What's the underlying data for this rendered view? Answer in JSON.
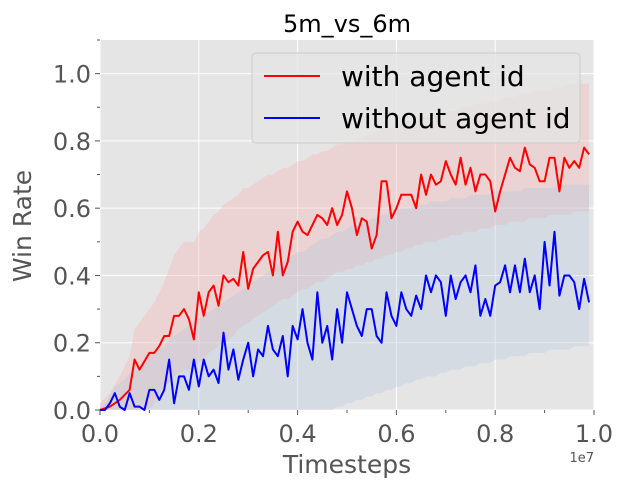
{
  "chart_data": {
    "type": "line",
    "title": "5m_vs_6m",
    "xlabel": "Timesteps",
    "ylabel": "Win Rate",
    "x_offset_label": "1e7",
    "xlim": [
      0,
      1.0
    ],
    "ylim": [
      0,
      1.1
    ],
    "xticks": [
      "0.0",
      "0.2",
      "0.4",
      "0.6",
      "0.8",
      "1.0"
    ],
    "yticks": [
      "0.0",
      "0.2",
      "0.4",
      "0.6",
      "0.8",
      "1.0"
    ],
    "grid": true,
    "legend_position": "upper-right",
    "style": "ggplot",
    "series": [
      {
        "name": "with agent id",
        "color": "#ff0000",
        "band_color": "#f5b3b3",
        "x": [
          0.0,
          0.02,
          0.04,
          0.06,
          0.07,
          0.08,
          0.1,
          0.11,
          0.12,
          0.13,
          0.14,
          0.15,
          0.16,
          0.17,
          0.18,
          0.19,
          0.2,
          0.21,
          0.22,
          0.23,
          0.24,
          0.25,
          0.26,
          0.27,
          0.28,
          0.29,
          0.3,
          0.31,
          0.32,
          0.33,
          0.34,
          0.35,
          0.36,
          0.37,
          0.38,
          0.39,
          0.4,
          0.41,
          0.42,
          0.43,
          0.44,
          0.45,
          0.46,
          0.47,
          0.48,
          0.49,
          0.5,
          0.51,
          0.52,
          0.53,
          0.54,
          0.55,
          0.56,
          0.57,
          0.58,
          0.59,
          0.6,
          0.61,
          0.62,
          0.63,
          0.64,
          0.65,
          0.66,
          0.67,
          0.68,
          0.69,
          0.7,
          0.71,
          0.72,
          0.73,
          0.74,
          0.75,
          0.76,
          0.77,
          0.78,
          0.79,
          0.8,
          0.81,
          0.82,
          0.83,
          0.84,
          0.85,
          0.86,
          0.87,
          0.88,
          0.89,
          0.9,
          0.91,
          0.92,
          0.93,
          0.94,
          0.95,
          0.96,
          0.97,
          0.98,
          0.99
        ],
        "y": [
          0.0,
          0.01,
          0.03,
          0.06,
          0.15,
          0.12,
          0.17,
          0.17,
          0.19,
          0.22,
          0.22,
          0.28,
          0.28,
          0.3,
          0.27,
          0.21,
          0.35,
          0.28,
          0.35,
          0.37,
          0.31,
          0.4,
          0.38,
          0.39,
          0.37,
          0.47,
          0.36,
          0.42,
          0.44,
          0.46,
          0.47,
          0.4,
          0.53,
          0.4,
          0.44,
          0.53,
          0.56,
          0.53,
          0.52,
          0.55,
          0.58,
          0.57,
          0.55,
          0.6,
          0.55,
          0.58,
          0.65,
          0.6,
          0.52,
          0.57,
          0.56,
          0.48,
          0.52,
          0.68,
          0.68,
          0.57,
          0.6,
          0.64,
          0.64,
          0.64,
          0.6,
          0.7,
          0.64,
          0.7,
          0.67,
          0.68,
          0.74,
          0.7,
          0.67,
          0.75,
          0.67,
          0.72,
          0.65,
          0.7,
          0.7,
          0.68,
          0.59,
          0.65,
          0.7,
          0.75,
          0.72,
          0.71,
          0.78,
          0.73,
          0.72,
          0.68,
          0.68,
          0.75,
          0.75,
          0.65,
          0.75,
          0.72,
          0.74,
          0.72,
          0.78,
          0.76
        ],
        "lower": [
          0.0,
          0.0,
          0.0,
          0.0,
          0.0,
          0.0,
          0.0,
          0.02,
          0.05,
          0.07,
          0.08,
          0.1,
          0.11,
          0.12,
          0.12,
          0.12,
          0.14,
          0.15,
          0.17,
          0.18,
          0.19,
          0.2,
          0.21,
          0.22,
          0.24,
          0.25,
          0.26,
          0.27,
          0.28,
          0.29,
          0.3,
          0.31,
          0.32,
          0.33,
          0.33,
          0.34,
          0.35,
          0.36,
          0.36,
          0.37,
          0.38,
          0.38,
          0.39,
          0.4,
          0.41,
          0.41,
          0.42,
          0.42,
          0.43,
          0.43,
          0.44,
          0.44,
          0.45,
          0.45,
          0.46,
          0.46,
          0.47,
          0.47,
          0.48,
          0.48,
          0.49,
          0.49,
          0.5,
          0.5,
          0.5,
          0.51,
          0.51,
          0.52,
          0.52,
          0.52,
          0.53,
          0.53,
          0.53,
          0.54,
          0.54,
          0.54,
          0.55,
          0.55,
          0.55,
          0.56,
          0.56,
          0.56,
          0.56,
          0.57,
          0.57,
          0.57,
          0.57,
          0.58,
          0.58,
          0.58,
          0.58,
          0.58,
          0.59,
          0.59,
          0.59,
          0.59
        ],
        "upper": [
          0.02,
          0.05,
          0.1,
          0.16,
          0.24,
          0.26,
          0.3,
          0.32,
          0.35,
          0.38,
          0.42,
          0.46,
          0.48,
          0.5,
          0.5,
          0.5,
          0.53,
          0.54,
          0.56,
          0.58,
          0.59,
          0.61,
          0.62,
          0.63,
          0.64,
          0.66,
          0.66,
          0.67,
          0.68,
          0.69,
          0.7,
          0.7,
          0.71,
          0.72,
          0.72,
          0.73,
          0.74,
          0.74,
          0.75,
          0.76,
          0.76,
          0.77,
          0.77,
          0.78,
          0.79,
          0.79,
          0.8,
          0.8,
          0.81,
          0.81,
          0.82,
          0.82,
          0.83,
          0.83,
          0.84,
          0.84,
          0.85,
          0.85,
          0.86,
          0.86,
          0.86,
          0.87,
          0.87,
          0.88,
          0.88,
          0.88,
          0.89,
          0.89,
          0.89,
          0.9,
          0.9,
          0.9,
          0.91,
          0.91,
          0.91,
          0.92,
          0.92,
          0.92,
          0.93,
          0.93,
          0.93,
          0.94,
          0.94,
          0.94,
          0.95,
          0.95,
          0.95,
          0.95,
          0.96,
          0.96,
          0.96,
          0.97,
          0.97,
          0.97,
          0.97,
          0.97
        ]
      },
      {
        "name": "without agent id",
        "color": "#0000ff",
        "band_color": "#b5c8dc",
        "x": [
          0.0,
          0.01,
          0.02,
          0.03,
          0.04,
          0.05,
          0.06,
          0.07,
          0.08,
          0.09,
          0.1,
          0.11,
          0.12,
          0.13,
          0.14,
          0.15,
          0.16,
          0.17,
          0.18,
          0.19,
          0.2,
          0.21,
          0.22,
          0.23,
          0.24,
          0.25,
          0.26,
          0.27,
          0.28,
          0.29,
          0.3,
          0.31,
          0.32,
          0.33,
          0.34,
          0.35,
          0.36,
          0.37,
          0.38,
          0.39,
          0.4,
          0.41,
          0.42,
          0.43,
          0.44,
          0.45,
          0.46,
          0.47,
          0.48,
          0.49,
          0.5,
          0.51,
          0.52,
          0.53,
          0.54,
          0.55,
          0.56,
          0.57,
          0.58,
          0.59,
          0.6,
          0.61,
          0.62,
          0.63,
          0.64,
          0.65,
          0.66,
          0.67,
          0.68,
          0.69,
          0.7,
          0.71,
          0.72,
          0.73,
          0.74,
          0.75,
          0.76,
          0.77,
          0.78,
          0.79,
          0.8,
          0.81,
          0.82,
          0.83,
          0.84,
          0.85,
          0.86,
          0.87,
          0.88,
          0.89,
          0.9,
          0.91,
          0.92,
          0.93,
          0.94,
          0.95,
          0.96,
          0.97,
          0.98,
          0.99
        ],
        "y": [
          0.0,
          0.0,
          0.02,
          0.05,
          0.01,
          0.0,
          0.05,
          0.01,
          0.01,
          0.0,
          0.06,
          0.06,
          0.03,
          0.06,
          0.15,
          0.02,
          0.1,
          0.1,
          0.06,
          0.15,
          0.07,
          0.15,
          0.1,
          0.12,
          0.08,
          0.23,
          0.12,
          0.18,
          0.09,
          0.15,
          0.2,
          0.1,
          0.18,
          0.16,
          0.25,
          0.18,
          0.16,
          0.22,
          0.1,
          0.25,
          0.21,
          0.3,
          0.2,
          0.15,
          0.35,
          0.2,
          0.25,
          0.15,
          0.3,
          0.2,
          0.35,
          0.3,
          0.25,
          0.22,
          0.3,
          0.3,
          0.22,
          0.2,
          0.35,
          0.28,
          0.25,
          0.35,
          0.3,
          0.28,
          0.34,
          0.3,
          0.4,
          0.35,
          0.4,
          0.38,
          0.28,
          0.4,
          0.33,
          0.38,
          0.4,
          0.35,
          0.43,
          0.28,
          0.33,
          0.28,
          0.37,
          0.38,
          0.43,
          0.35,
          0.43,
          0.35,
          0.45,
          0.35,
          0.4,
          0.3,
          0.5,
          0.37,
          0.53,
          0.34,
          0.4,
          0.4,
          0.38,
          0.3,
          0.39,
          0.32
        ],
        "lower": [
          0.0,
          0.0,
          0.0,
          0.0,
          0.0,
          0.0,
          0.0,
          0.0,
          0.0,
          0.0,
          0.0,
          0.0,
          0.0,
          0.0,
          0.0,
          0.0,
          0.0,
          0.0,
          0.0,
          0.0,
          0.0,
          0.0,
          0.0,
          0.0,
          0.0,
          0.0,
          0.0,
          0.0,
          0.0,
          0.0,
          0.0,
          0.0,
          0.0,
          0.0,
          0.0,
          0.0,
          0.0,
          0.0,
          0.0,
          0.0,
          0.0,
          0.0,
          0.0,
          0.0,
          0.0,
          0.0,
          0.0,
          0.0,
          0.01,
          0.01,
          0.02,
          0.02,
          0.03,
          0.03,
          0.04,
          0.04,
          0.05,
          0.05,
          0.06,
          0.06,
          0.07,
          0.07,
          0.08,
          0.08,
          0.09,
          0.09,
          0.1,
          0.1,
          0.1,
          0.11,
          0.11,
          0.12,
          0.12,
          0.12,
          0.13,
          0.13,
          0.13,
          0.14,
          0.14,
          0.14,
          0.15,
          0.15,
          0.15,
          0.16,
          0.16,
          0.16,
          0.16,
          0.17,
          0.17,
          0.17,
          0.17,
          0.18,
          0.18,
          0.18,
          0.18,
          0.18,
          0.19,
          0.19,
          0.19,
          0.19
        ],
        "upper": [
          0.01,
          0.02,
          0.04,
          0.07,
          0.08,
          0.09,
          0.11,
          0.12,
          0.13,
          0.14,
          0.16,
          0.17,
          0.18,
          0.19,
          0.21,
          0.22,
          0.23,
          0.24,
          0.25,
          0.26,
          0.27,
          0.28,
          0.29,
          0.3,
          0.31,
          0.32,
          0.33,
          0.34,
          0.35,
          0.36,
          0.37,
          0.38,
          0.39,
          0.4,
          0.41,
          0.42,
          0.43,
          0.44,
          0.45,
          0.46,
          0.47,
          0.47,
          0.48,
          0.49,
          0.5,
          0.51,
          0.51,
          0.52,
          0.53,
          0.53,
          0.54,
          0.55,
          0.55,
          0.56,
          0.56,
          0.57,
          0.57,
          0.58,
          0.58,
          0.59,
          0.59,
          0.6,
          0.6,
          0.6,
          0.61,
          0.61,
          0.61,
          0.62,
          0.62,
          0.62,
          0.62,
          0.63,
          0.63,
          0.63,
          0.63,
          0.64,
          0.64,
          0.64,
          0.64,
          0.64,
          0.65,
          0.65,
          0.65,
          0.65,
          0.65,
          0.65,
          0.66,
          0.66,
          0.66,
          0.66,
          0.66,
          0.66,
          0.66,
          0.67,
          0.67,
          0.67,
          0.67,
          0.67,
          0.67,
          0.67
        ]
      }
    ]
  }
}
